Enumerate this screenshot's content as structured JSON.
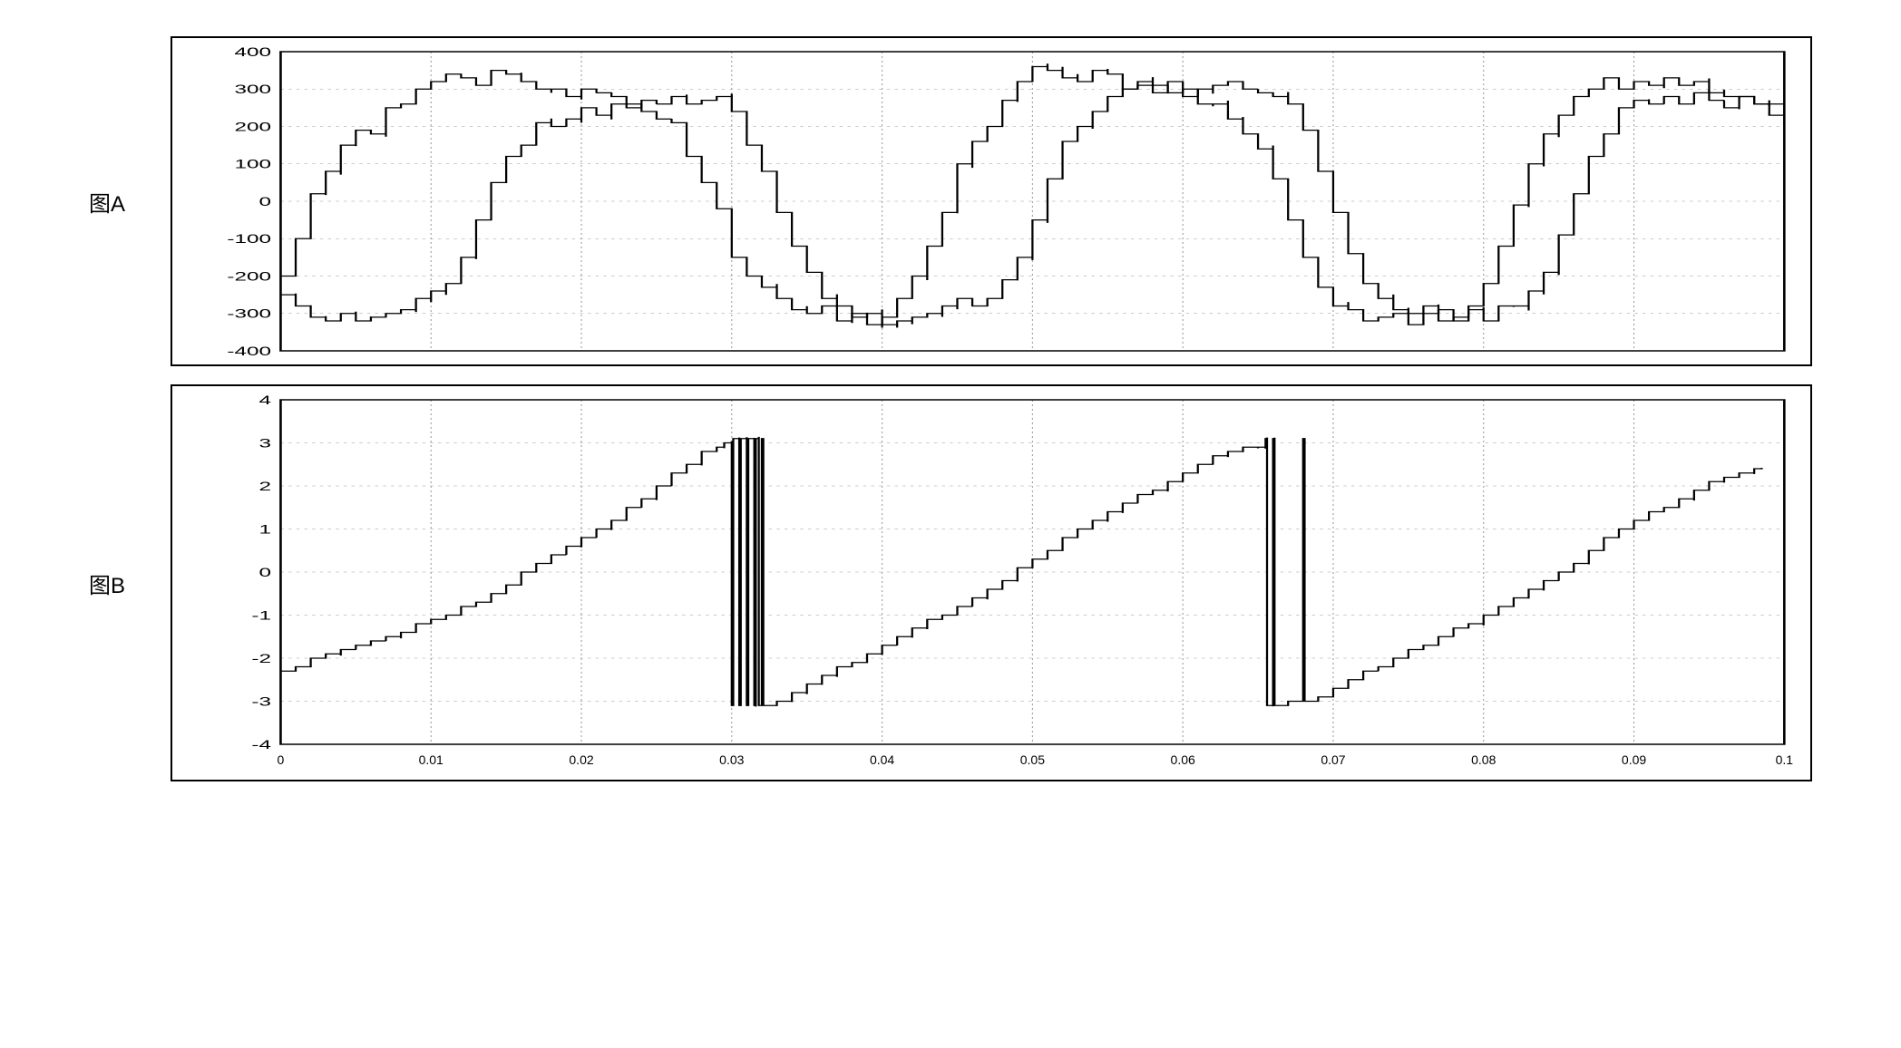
{
  "chartA": {
    "type": "line",
    "label": "图A",
    "ylim": [
      -400,
      400
    ],
    "yticks": [
      -400,
      -300,
      -200,
      -100,
      0,
      100,
      200,
      300,
      400
    ],
    "ytick_labels": [
      "-400",
      "-300",
      "-200",
      "-100",
      "0",
      "100",
      "200",
      "300",
      "400"
    ],
    "xlim": [
      0,
      0.1
    ],
    "xgrid": [
      0,
      0.01,
      0.02,
      0.03,
      0.04,
      0.05,
      0.06,
      0.07,
      0.08,
      0.09,
      0.1
    ],
    "background_color": "#ffffff",
    "grid_color": "#999999",
    "line_color": "#000000",
    "line_width": 1.3,
    "label_fontsize": 24,
    "tick_fontsize": 14,
    "series1_x": [
      0,
      0.001,
      0.002,
      0.003,
      0.004,
      0.005,
      0.006,
      0.007,
      0.008,
      0.009,
      0.01,
      0.011,
      0.012,
      0.013,
      0.014,
      0.015,
      0.016,
      0.017,
      0.018,
      0.019,
      0.02,
      0.021,
      0.022,
      0.023,
      0.024,
      0.025,
      0.026,
      0.027,
      0.028,
      0.029,
      0.03,
      0.031,
      0.032,
      0.033,
      0.034,
      0.035,
      0.036,
      0.037,
      0.038,
      0.039,
      0.04,
      0.041,
      0.042,
      0.043,
      0.044,
      0.045,
      0.046,
      0.047,
      0.048,
      0.049,
      0.05,
      0.051,
      0.052,
      0.053,
      0.054,
      0.055,
      0.056,
      0.057,
      0.058,
      0.059,
      0.06,
      0.061,
      0.062,
      0.063,
      0.064,
      0.065,
      0.066,
      0.067,
      0.068,
      0.069,
      0.07,
      0.071,
      0.072,
      0.073,
      0.074,
      0.075,
      0.076,
      0.077,
      0.078,
      0.079,
      0.08,
      0.081,
      0.082,
      0.083,
      0.084,
      0.085,
      0.086,
      0.087,
      0.088,
      0.089,
      0.09,
      0.091,
      0.092,
      0.093,
      0.094,
      0.095,
      0.096,
      0.097,
      0.098,
      0.099,
      0.1
    ],
    "series1_y": [
      -200,
      -100,
      20,
      80,
      150,
      190,
      180,
      250,
      260,
      300,
      320,
      340,
      330,
      310,
      350,
      340,
      320,
      300,
      300,
      280,
      300,
      290,
      280,
      260,
      240,
      220,
      210,
      120,
      50,
      -20,
      -150,
      -200,
      -230,
      -260,
      -290,
      -300,
      -280,
      -320,
      -300,
      -330,
      -310,
      -260,
      -200,
      -120,
      -30,
      100,
      160,
      200,
      270,
      320,
      360,
      350,
      330,
      320,
      350,
      340,
      300,
      320,
      310,
      290,
      300,
      260,
      260,
      220,
      180,
      140,
      60,
      -50,
      -150,
      -230,
      -280,
      -290,
      -320,
      -310,
      -300,
      -330,
      -300,
      -290,
      -320,
      -280,
      -220,
      -120,
      -10,
      100,
      180,
      230,
      280,
      300,
      330,
      300,
      320,
      310,
      330,
      310,
      320,
      290,
      280,
      280,
      260,
      260,
      230
    ],
    "series2_x": [
      0,
      0.001,
      0.002,
      0.003,
      0.004,
      0.005,
      0.006,
      0.007,
      0.008,
      0.009,
      0.01,
      0.011,
      0.012,
      0.013,
      0.014,
      0.015,
      0.016,
      0.017,
      0.018,
      0.019,
      0.02,
      0.021,
      0.022,
      0.023,
      0.024,
      0.025,
      0.026,
      0.027,
      0.028,
      0.029,
      0.03,
      0.031,
      0.032,
      0.033,
      0.034,
      0.035,
      0.036,
      0.037,
      0.038,
      0.039,
      0.04,
      0.041,
      0.042,
      0.043,
      0.044,
      0.045,
      0.046,
      0.047,
      0.048,
      0.049,
      0.05,
      0.051,
      0.052,
      0.053,
      0.054,
      0.055,
      0.056,
      0.057,
      0.058,
      0.059,
      0.06,
      0.061,
      0.062,
      0.063,
      0.064,
      0.065,
      0.066,
      0.067,
      0.068,
      0.069,
      0.07,
      0.071,
      0.072,
      0.073,
      0.074,
      0.075,
      0.076,
      0.077,
      0.078,
      0.079,
      0.08,
      0.081,
      0.082,
      0.083,
      0.084,
      0.085,
      0.086,
      0.087,
      0.088,
      0.089,
      0.09,
      0.091,
      0.092,
      0.093,
      0.094,
      0.095,
      0.096,
      0.097,
      0.098,
      0.099,
      0.1
    ],
    "series2_y": [
      -250,
      -280,
      -310,
      -320,
      -300,
      -320,
      -310,
      -300,
      -290,
      -260,
      -240,
      -220,
      -150,
      -50,
      50,
      120,
      150,
      210,
      200,
      220,
      250,
      230,
      260,
      250,
      270,
      260,
      280,
      260,
      270,
      280,
      240,
      150,
      80,
      -30,
      -120,
      -190,
      -260,
      -280,
      -310,
      -300,
      -330,
      -320,
      -310,
      -300,
      -280,
      -260,
      -280,
      -260,
      -210,
      -150,
      -50,
      60,
      160,
      200,
      240,
      280,
      300,
      310,
      290,
      320,
      280,
      300,
      310,
      320,
      300,
      290,
      280,
      260,
      190,
      80,
      -30,
      -140,
      -220,
      -260,
      -290,
      -300,
      -280,
      -320,
      -310,
      -290,
      -320,
      -280,
      -280,
      -240,
      -190,
      -90,
      20,
      120,
      180,
      250,
      270,
      260,
      280,
      260,
      290,
      270,
      250,
      280,
      260,
      230,
      200
    ]
  },
  "chartB": {
    "type": "line",
    "label": "图B",
    "ylim": [
      -4,
      4
    ],
    "yticks": [
      -4,
      -3,
      -2,
      -1,
      0,
      1,
      2,
      3,
      4
    ],
    "ytick_labels": [
      "-4",
      "-3",
      "-2",
      "-1",
      "0",
      "1",
      "2",
      "3",
      "4"
    ],
    "xlim": [
      0,
      0.1
    ],
    "xticks": [
      0,
      0.01,
      0.02,
      0.03,
      0.04,
      0.05,
      0.06,
      0.07,
      0.08,
      0.09,
      0.1
    ],
    "xtick_labels": [
      "0",
      "0.01",
      "0.02",
      "0.03",
      "0.04",
      "0.05",
      "0.06",
      "0.07",
      "0.08",
      "0.09",
      "0.1"
    ],
    "background_color": "#ffffff",
    "grid_color": "#999999",
    "line_color": "#000000",
    "line_width": 1.3,
    "label_fontsize": 24,
    "tick_fontsize": 14,
    "series_x": [
      0,
      0.001,
      0.002,
      0.003,
      0.004,
      0.005,
      0.006,
      0.007,
      0.008,
      0.009,
      0.01,
      0.011,
      0.012,
      0.013,
      0.014,
      0.015,
      0.016,
      0.017,
      0.018,
      0.019,
      0.02,
      0.021,
      0.022,
      0.023,
      0.024,
      0.025,
      0.026,
      0.027,
      0.028,
      0.029,
      0.0295,
      0.03,
      0.0301,
      0.0305,
      0.0306,
      0.031,
      0.0311,
      0.0315,
      0.0316,
      0.0318,
      0.032,
      0.0321,
      0.033,
      0.034,
      0.035,
      0.036,
      0.037,
      0.038,
      0.039,
      0.04,
      0.041,
      0.042,
      0.043,
      0.044,
      0.045,
      0.046,
      0.047,
      0.048,
      0.049,
      0.05,
      0.051,
      0.052,
      0.053,
      0.054,
      0.055,
      0.056,
      0.057,
      0.058,
      0.059,
      0.06,
      0.061,
      0.062,
      0.063,
      0.064,
      0.065,
      0.0655,
      0.0656,
      0.066,
      0.0661,
      0.067,
      0.068,
      0.0681,
      0.069,
      0.07,
      0.071,
      0.072,
      0.073,
      0.074,
      0.075,
      0.076,
      0.077,
      0.078,
      0.079,
      0.08,
      0.081,
      0.082,
      0.083,
      0.084,
      0.085,
      0.086,
      0.087,
      0.088,
      0.089,
      0.09,
      0.091,
      0.092,
      0.093,
      0.094,
      0.095,
      0.096,
      0.097,
      0.098,
      0.0985
    ],
    "series_y": [
      -2.3,
      -2.2,
      -2.0,
      -1.9,
      -1.8,
      -1.7,
      -1.6,
      -1.5,
      -1.4,
      -1.2,
      -1.1,
      -1.0,
      -0.8,
      -0.7,
      -0.5,
      -0.3,
      0.0,
      0.2,
      0.4,
      0.6,
      0.8,
      1.0,
      1.2,
      1.5,
      1.7,
      2.0,
      2.3,
      2.5,
      2.8,
      2.9,
      3.0,
      -3.1,
      3.1,
      -3.1,
      3.1,
      -3.1,
      3.1,
      -3.1,
      3.1,
      -3.1,
      3.1,
      -3.1,
      -3.0,
      -2.8,
      -2.6,
      -2.4,
      -2.2,
      -2.1,
      -1.9,
      -1.7,
      -1.5,
      -1.3,
      -1.1,
      -1.0,
      -0.8,
      -0.6,
      -0.4,
      -0.2,
      0.1,
      0.3,
      0.5,
      0.8,
      1.0,
      1.2,
      1.4,
      1.6,
      1.8,
      1.9,
      2.1,
      2.3,
      2.5,
      2.7,
      2.8,
      2.9,
      2.9,
      3.1,
      -3.1,
      3.1,
      -3.1,
      -3.0,
      3.1,
      -3.0,
      -2.9,
      -2.7,
      -2.5,
      -2.3,
      -2.2,
      -2.0,
      -1.8,
      -1.7,
      -1.5,
      -1.3,
      -1.2,
      -1.0,
      -0.8,
      -0.6,
      -0.4,
      -0.2,
      0.0,
      0.2,
      0.5,
      0.8,
      1.0,
      1.2,
      1.4,
      1.5,
      1.7,
      1.9,
      2.1,
      2.2,
      2.3,
      2.4,
      2.4
    ]
  }
}
